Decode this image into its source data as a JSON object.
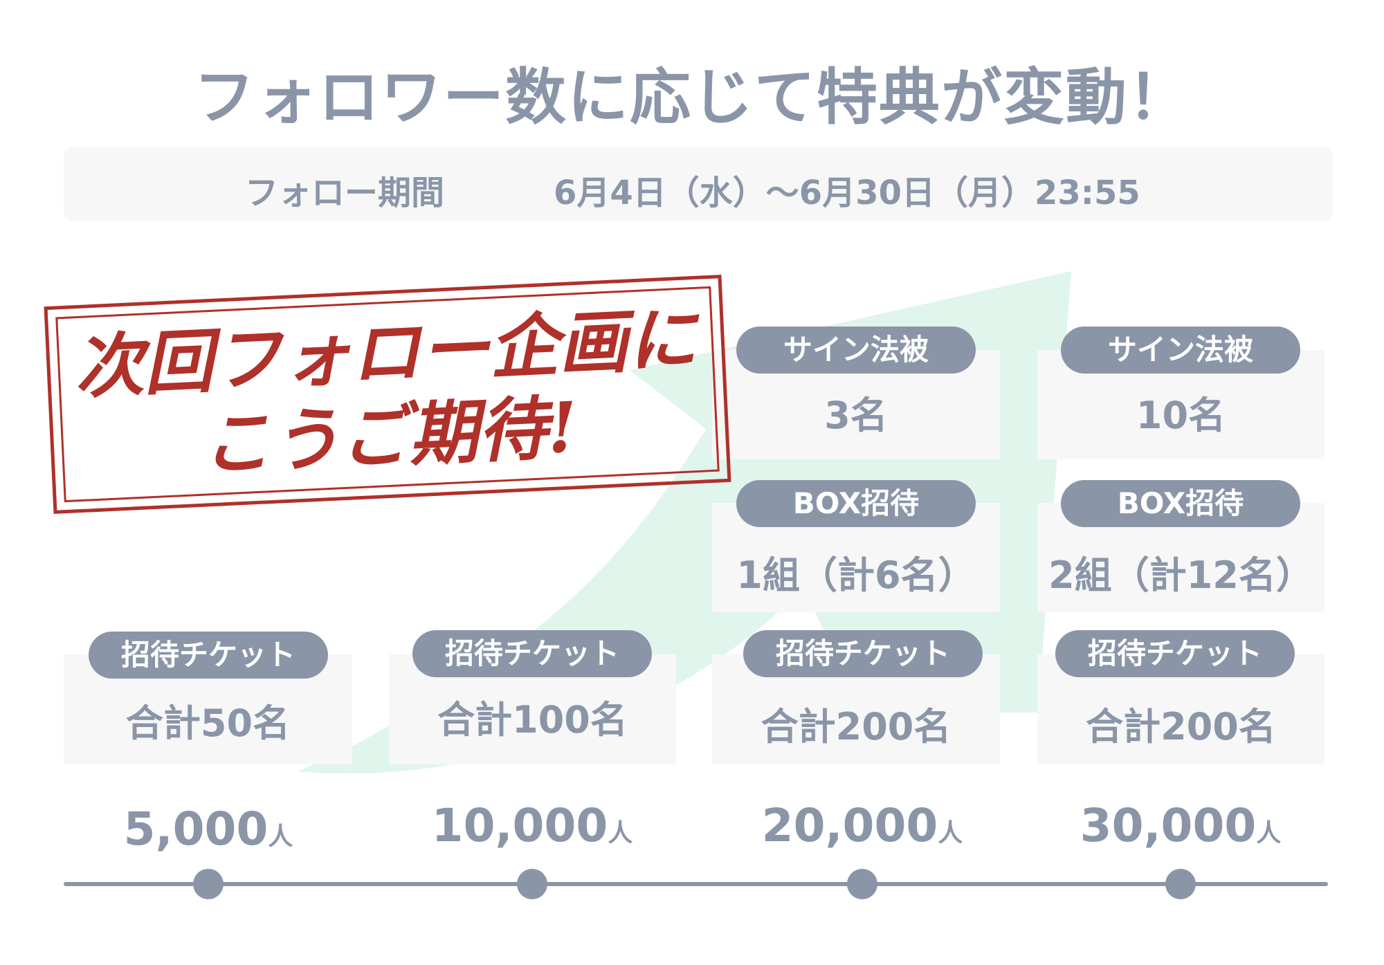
{
  "title": "フォロワー数に応じて特典が変動！",
  "period": {
    "label": "フォロー期間",
    "value": "6月4日（水）〜6月30日（月）23:55"
  },
  "tiers": [
    {
      "count": "5,000",
      "unit": "人",
      "ticket_label": "招待チケット",
      "ticket_value": "合計50名"
    },
    {
      "count": "10,000",
      "unit": "人",
      "ticket_label": "招待チケット",
      "ticket_value": "合計100名"
    },
    {
      "count": "20,000",
      "unit": "人",
      "ticket_label": "招待チケット",
      "ticket_value": "合計200名",
      "box_label": "BOX招待",
      "box_value": "1組（計6名）",
      "sign_label": "サイン法被",
      "sign_value": "3名"
    },
    {
      "count": "30,000",
      "unit": "人",
      "ticket_label": "招待チケット",
      "ticket_value": "合計200名",
      "box_label": "BOX招待",
      "box_value": "2組（計12名）",
      "sign_label": "サイン法被",
      "sign_value": "10名"
    }
  ],
  "stamp": {
    "text": "次回フォロー企画にこうご期待!"
  },
  "colors": {
    "text": "#8a95a8",
    "panel": "#f7f7f7",
    "arrow": "#e0f5ec",
    "stamp": "#b0302a"
  }
}
